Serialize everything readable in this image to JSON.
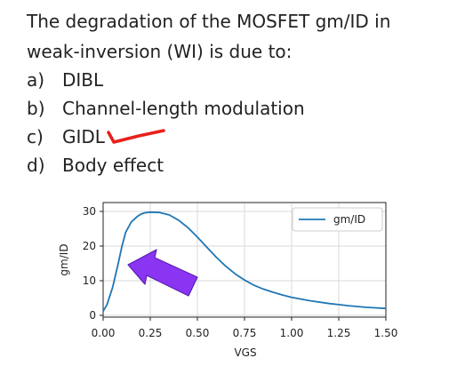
{
  "question": {
    "line1": "The degradation of the MOSFET gm/ID in",
    "line2": "weak-inversion (WI) is due to:"
  },
  "options": [
    {
      "letter": "a)",
      "text": "DIBL"
    },
    {
      "letter": "b)",
      "text": "Channel-length modulation"
    },
    {
      "letter": "c)",
      "text": "GIDL"
    },
    {
      "letter": "d)",
      "text": "Body effect"
    }
  ],
  "annotations": {
    "checkmark_color": "#e8201a",
    "arrow_color": "#8a35f2",
    "arrow_stroke": "#5a1fb3"
  },
  "chart_data": {
    "type": "line",
    "xlabel": "VGS",
    "ylabel": "gm/ID",
    "xlim": [
      0.0,
      1.5
    ],
    "ylim": [
      0,
      30
    ],
    "xticks": [
      "0.00",
      "0.25",
      "0.50",
      "0.75",
      "1.00",
      "1.25",
      "1.50"
    ],
    "yticks": [
      "0",
      "10",
      "20",
      "30"
    ],
    "grid": true,
    "legend_position": "top-right",
    "series": [
      {
        "name": "gm/ID",
        "color": "#1f77b4",
        "x": [
          0.0,
          0.02,
          0.05,
          0.08,
          0.1,
          0.12,
          0.15,
          0.18,
          0.2,
          0.22,
          0.25,
          0.3,
          0.35,
          0.4,
          0.45,
          0.5,
          0.55,
          0.6,
          0.65,
          0.7,
          0.75,
          0.8,
          0.85,
          0.9,
          0.95,
          1.0,
          1.1,
          1.2,
          1.3,
          1.4,
          1.5
        ],
        "y": [
          1.2,
          3.0,
          8.0,
          15.0,
          20.0,
          24.0,
          27.0,
          28.5,
          29.2,
          29.6,
          29.8,
          29.7,
          29.0,
          27.5,
          25.3,
          22.6,
          19.7,
          16.8,
          14.2,
          12.0,
          10.2,
          8.7,
          7.6,
          6.7,
          5.9,
          5.2,
          4.2,
          3.4,
          2.8,
          2.3,
          2.0
        ]
      }
    ]
  }
}
